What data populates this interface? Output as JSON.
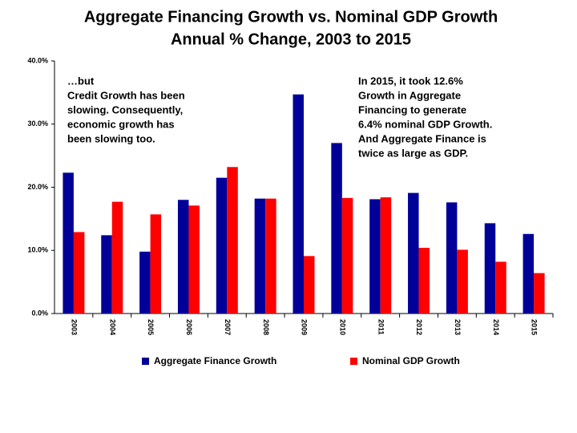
{
  "chart_data": {
    "type": "bar",
    "title": "Aggregate Financing Growth vs. Nominal GDP Growth",
    "subtitle": "Annual % Change, 2003 to 2015",
    "categories": [
      "2003",
      "2004",
      "2005",
      "2006",
      "2007",
      "2008",
      "2009",
      "2010",
      "2011",
      "2012",
      "2013",
      "2014",
      "2015"
    ],
    "series": [
      {
        "name": "Aggregate Finance Growth",
        "color": "#000099",
        "values": [
          22.3,
          12.4,
          9.8,
          18.0,
          21.5,
          18.2,
          34.7,
          27.0,
          18.1,
          19.1,
          17.6,
          14.3,
          12.6
        ]
      },
      {
        "name": "Nominal GDP Growth",
        "color": "#ff0000",
        "values": [
          12.9,
          17.7,
          15.7,
          17.1,
          23.2,
          18.2,
          9.1,
          18.3,
          18.4,
          10.4,
          10.1,
          8.2,
          6.4
        ]
      }
    ],
    "ylim": [
      0,
      40
    ],
    "yticks": [
      {
        "value": 0,
        "label": "0.0%"
      },
      {
        "value": 10,
        "label": "10.0%"
      },
      {
        "value": 20,
        "label": "20.0%"
      },
      {
        "value": 30,
        "label": "30.0%"
      },
      {
        "value": 40,
        "label": "40.0%"
      }
    ],
    "grid": false,
    "legend": "bottom",
    "annotations": [
      [
        "…but",
        "Credit Growth has been",
        "slowing. Consequently,",
        "economic growth has",
        "been slowing too."
      ],
      [
        "In 2015, it took 12.6%",
        "Growth in Aggregate",
        "Financing to generate",
        "6.4% nominal GDP Growth.",
        "And Aggregate Finance is",
        "twice as large as GDP."
      ]
    ]
  }
}
